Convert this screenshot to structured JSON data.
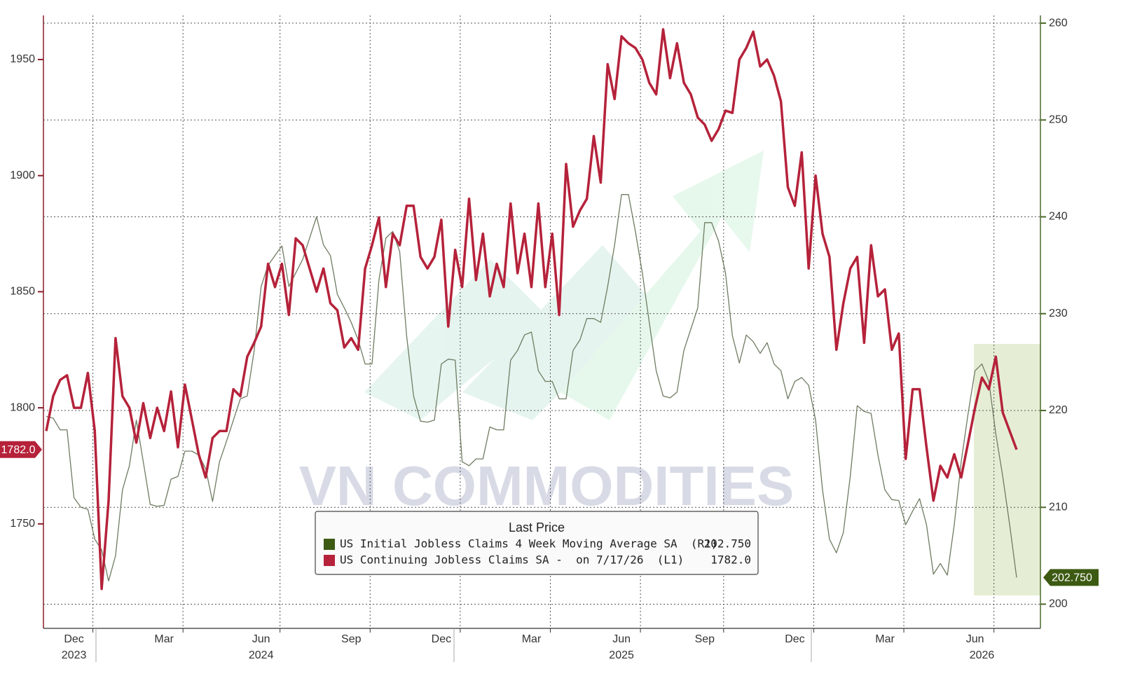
{
  "chart_data": {
    "type": "line",
    "watermark": "VN COMMODITIES",
    "legend_title": "Last Price",
    "categories": [
      null,
      null,
      null,
      null,
      "Dec",
      null,
      null,
      null,
      null,
      null,
      null,
      null,
      null,
      null,
      null,
      null,
      null,
      "Mar",
      null,
      null,
      null,
      null,
      null,
      null,
      null,
      null,
      null,
      null,
      null,
      null,
      null,
      "Jun",
      null,
      null,
      null,
      null,
      null,
      null,
      null,
      null,
      null,
      null,
      null,
      null,
      "Sep",
      null,
      null,
      null,
      null,
      null,
      null,
      null,
      null,
      null,
      null,
      null,
      null,
      "Dec",
      null,
      null,
      null,
      null,
      null,
      null,
      null,
      null,
      null,
      null,
      null,
      null,
      "Mar",
      null,
      null,
      null,
      null,
      null,
      null,
      null,
      null,
      null,
      null,
      null,
      null,
      "Jun",
      null,
      null,
      null,
      null,
      null,
      null,
      null,
      null,
      null,
      null,
      null,
      "Sep",
      null,
      null,
      null,
      null,
      null,
      null,
      null,
      null,
      null,
      null,
      null,
      null,
      "Dec",
      null,
      null,
      null,
      null,
      null,
      null,
      null,
      null,
      null,
      null,
      null,
      null,
      "Mar",
      null,
      null,
      null,
      null,
      null,
      null,
      null,
      null,
      null,
      null,
      null,
      null,
      "Jun",
      null,
      null,
      null,
      null,
      null,
      null
    ],
    "years": [
      null,
      null,
      null,
      null,
      "2023",
      null,
      null,
      null,
      null,
      null,
      null,
      null,
      null,
      null,
      null,
      null,
      null,
      null,
      null,
      null,
      null,
      null,
      null,
      null,
      null,
      null,
      null,
      null,
      null,
      null,
      null,
      "2024",
      null,
      null,
      null,
      null,
      null,
      null,
      null,
      null,
      null,
      null,
      null,
      null,
      null,
      null,
      null,
      null,
      null,
      null,
      null,
      null,
      null,
      null,
      null,
      null,
      null,
      null,
      null,
      null,
      null,
      null,
      null,
      null,
      null,
      null,
      null,
      null,
      null,
      null,
      null,
      null,
      null,
      null,
      null,
      null,
      null,
      null,
      null,
      null,
      null,
      null,
      null,
      "2025",
      null,
      null,
      null,
      null,
      null,
      null,
      null,
      null,
      null,
      null,
      null,
      null,
      null,
      null,
      null,
      null,
      null,
      null,
      null,
      null,
      null,
      null,
      null,
      null,
      null,
      null,
      null,
      null,
      null,
      null,
      null,
      null,
      null,
      null,
      null,
      null,
      null,
      null,
      null,
      null,
      null,
      null,
      null,
      null,
      null,
      null,
      null,
      null,
      null,
      null,
      null,
      "2026",
      null,
      null,
      null,
      null,
      null,
      null
    ],
    "series": [
      {
        "name": "US Initial Jobless Claims 4 Week Moving Average SA  (R1)",
        "color": "#3d5a13",
        "line_color": "#6f7c62",
        "axis": "y2",
        "last_value_label": "202.750",
        "values": [
          219.4,
          219.2,
          218,
          218,
          211,
          210,
          209.8,
          206.7,
          205.6,
          202.4,
          205,
          211.8,
          214.3,
          219,
          214.7,
          210.3,
          210.1,
          210.2,
          212.9,
          213.2,
          215.8,
          215.8,
          215.4,
          214,
          210.6,
          214.7,
          216.8,
          219,
          221.2,
          221.5,
          226.2,
          232.8,
          235,
          236,
          237,
          232.8,
          234.2,
          235.6,
          237.8,
          240,
          237.1,
          236,
          232,
          230.6,
          229.1,
          227.3,
          224.8,
          224.8,
          233.5,
          237.8,
          238.5,
          236.4,
          227.7,
          221.5,
          218.9,
          218.8,
          219,
          224.8,
          225.3,
          225.2,
          214.7,
          214.3,
          215,
          215,
          218.3,
          218,
          218,
          225.2,
          226.2,
          227.8,
          228.1,
          224.1,
          223,
          223,
          221.2,
          221.2,
          226.2,
          227.3,
          229.5,
          229.5,
          229.1,
          232.8,
          237.1,
          242.3,
          242.3,
          238.5,
          234.2,
          229.1,
          224.1,
          221.5,
          221.3,
          221.9,
          226.2,
          228.4,
          230.6,
          239.4,
          239.4,
          237.5,
          234.2,
          227.7,
          224.9,
          227.8,
          227.1,
          225.9,
          227,
          224.8,
          224.1,
          221.2,
          223,
          223.4,
          222.6,
          219,
          211.8,
          206.7,
          205.3,
          207.4,
          213.2,
          220.5,
          219.9,
          219.7,
          215.4,
          211.8,
          210.8,
          210.7,
          208.2,
          209.6,
          210.9,
          208.2,
          203.1,
          204.2,
          203,
          208.2,
          214.7,
          219.7,
          224.1,
          224.8,
          223,
          217.6,
          213.2,
          208.2,
          202.75
        ]
      },
      {
        "name": "US Continuing Jobless Claims SA -  on 7/17/26  (L1)",
        "color": "#b5223a",
        "line_color": "#b5223a",
        "axis": "y",
        "last_value_label": "1782.0",
        "values": [
          1790,
          1805,
          1812,
          1814,
          1800,
          1800,
          1815,
          1790,
          1722,
          1760,
          1830,
          1805,
          1800,
          1785,
          1802,
          1787,
          1800,
          1790,
          1807,
          1783,
          1810,
          1795,
          1780,
          1770,
          1787,
          1790,
          1790,
          1808,
          1805,
          1822,
          1828,
          1835,
          1862,
          1852,
          1862,
          1840,
          1873,
          1870,
          1860,
          1850,
          1860,
          1845,
          1842,
          1826,
          1830,
          1825,
          1860,
          1870,
          1882,
          1852,
          1875,
          1870,
          1887,
          1887,
          1865,
          1860,
          1865,
          1881,
          1835,
          1868,
          1852,
          1890,
          1855,
          1875,
          1848,
          1862,
          1852,
          1888,
          1858,
          1875,
          1852,
          1888,
          1852,
          1875,
          1840,
          1905,
          1878,
          1885,
          1890,
          1917,
          1897,
          1948,
          1933,
          1960,
          1957,
          1955,
          1950,
          1940,
          1935,
          1963,
          1942,
          1957,
          1940,
          1935,
          1925,
          1922,
          1915,
          1920,
          1928,
          1927,
          1950,
          1955,
          1962,
          1947,
          1950,
          1943,
          1932,
          1895,
          1887,
          1910,
          1860,
          1900,
          1875,
          1865,
          1825,
          1845,
          1860,
          1865,
          1828,
          1870,
          1848,
          1851,
          1825,
          1832,
          1778,
          1808,
          1808,
          1783,
          1760,
          1775,
          1770,
          1780,
          1770,
          1785,
          1800,
          1813,
          1808,
          1822,
          1798,
          1790,
          1782
        ]
      }
    ],
    "ylim": [
      1705,
      1969
    ],
    "yticks": [
      1750,
      1800,
      1850,
      1900,
      1950
    ],
    "y2lim": [
      197.5,
      260.8
    ],
    "y2ticks": [
      200,
      210,
      220,
      230,
      240,
      250,
      260
    ],
    "grid": true
  }
}
